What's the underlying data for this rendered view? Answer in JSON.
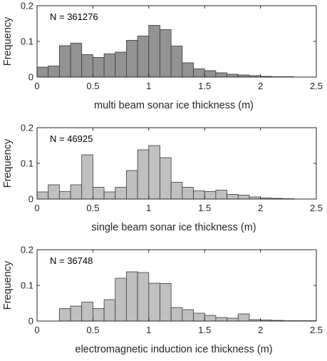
{
  "chart_data": [
    {
      "type": "bar",
      "annotation": "N = 361276",
      "xlabel": "multi beam sonar ice thickness (m)",
      "ylabel": "Frequency",
      "xlim": [
        0,
        2.5
      ],
      "ylim": [
        0,
        0.2
      ],
      "xticks": [
        "0",
        "0.5",
        "1",
        "1.5",
        "2",
        "2.5"
      ],
      "yticks": [
        "0",
        "0.1",
        "0.2"
      ],
      "bin_width": 0.1,
      "x": [
        0.0,
        0.1,
        0.2,
        0.3,
        0.4,
        0.5,
        0.6,
        0.7,
        0.8,
        0.9,
        1.0,
        1.1,
        1.2,
        1.3,
        1.4,
        1.5,
        1.6,
        1.7,
        1.8,
        1.9,
        2.0,
        2.1,
        2.2
      ],
      "values": [
        0.028,
        0.031,
        0.088,
        0.095,
        0.063,
        0.055,
        0.065,
        0.07,
        0.103,
        0.115,
        0.145,
        0.133,
        0.087,
        0.04,
        0.023,
        0.018,
        0.012,
        0.008,
        0.006,
        0.004,
        0.002,
        0.001,
        0.001
      ],
      "color": "#939393"
    },
    {
      "type": "bar",
      "annotation": "N = 46925",
      "xlabel": "single beam sonar ice thickness (m)",
      "ylabel": "Frequency",
      "xlim": [
        0,
        2.5
      ],
      "ylim": [
        0,
        0.2
      ],
      "xticks": [
        "0",
        "0.5",
        "1",
        "1.5",
        "2",
        "2.5"
      ],
      "yticks": [
        "0",
        "0.1",
        "0.2"
      ],
      "bin_width": 0.1,
      "x": [
        0.0,
        0.1,
        0.2,
        0.3,
        0.4,
        0.5,
        0.6,
        0.7,
        0.8,
        0.9,
        1.0,
        1.1,
        1.2,
        1.3,
        1.4,
        1.5,
        1.6,
        1.7,
        1.8,
        1.9,
        2.0,
        2.1,
        2.2
      ],
      "values": [
        0.02,
        0.04,
        0.021,
        0.04,
        0.124,
        0.033,
        0.02,
        0.033,
        0.08,
        0.138,
        0.15,
        0.116,
        0.047,
        0.033,
        0.023,
        0.021,
        0.025,
        0.013,
        0.011,
        0.006,
        0.003,
        0.002,
        0.001
      ],
      "color": "#c0c0c0"
    },
    {
      "type": "bar",
      "annotation": "N = 36748",
      "xlabel": "electromagnetic induction ice thickness (m)",
      "ylabel": "Frequency",
      "xlim": [
        0,
        2.5
      ],
      "ylim": [
        0,
        0.2
      ],
      "xticks": [
        "0",
        "0.5",
        "1",
        "1.5",
        "2",
        "2.5"
      ],
      "yticks": [
        "0",
        "0.1",
        "0.2"
      ],
      "bin_width": 0.1,
      "x": [
        0.2,
        0.3,
        0.4,
        0.5,
        0.6,
        0.7,
        0.8,
        0.9,
        1.0,
        1.1,
        1.2,
        1.3,
        1.4,
        1.5,
        1.6,
        1.7,
        1.8,
        1.9,
        2.0,
        2.1,
        2.2,
        2.3,
        2.4
      ],
      "values": [
        0.035,
        0.042,
        0.053,
        0.035,
        0.06,
        0.12,
        0.138,
        0.136,
        0.106,
        0.105,
        0.038,
        0.032,
        0.022,
        0.016,
        0.01,
        0.008,
        0.02,
        0.004,
        0.003,
        0.002,
        0.001,
        0.001,
        0.001
      ],
      "color": "#c0c0c0"
    }
  ]
}
